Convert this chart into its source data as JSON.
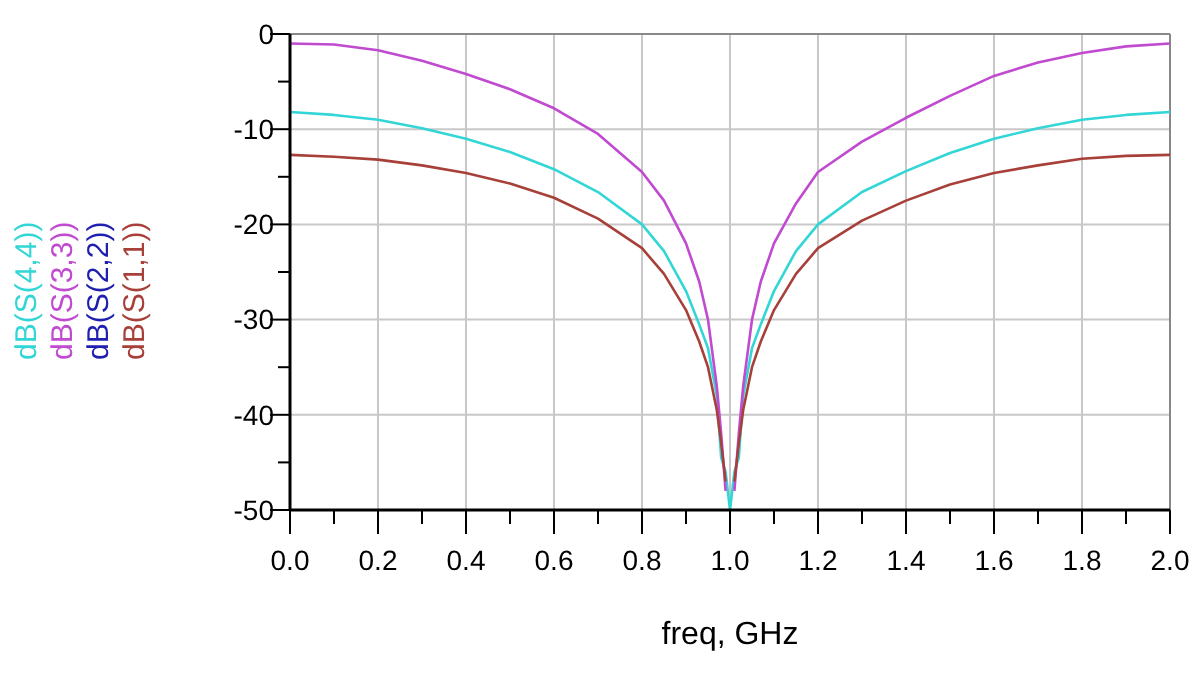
{
  "chart_data": {
    "type": "line",
    "xlabel": "freq, GHz",
    "xlim": [
      0,
      2
    ],
    "ylim": [
      -50,
      0
    ],
    "xticks": [
      {
        "value": 0,
        "label": "0.0"
      },
      {
        "value": 0.1,
        "label": null
      },
      {
        "value": 0.2,
        "label": "0.2"
      },
      {
        "value": 0.3,
        "label": null
      },
      {
        "value": 0.4,
        "label": "0.4"
      },
      {
        "value": 0.5,
        "label": null
      },
      {
        "value": 0.6,
        "label": "0.6"
      },
      {
        "value": 0.7,
        "label": null
      },
      {
        "value": 0.8,
        "label": "0.8"
      },
      {
        "value": 0.9,
        "label": null
      },
      {
        "value": 1,
        "label": "1.0"
      },
      {
        "value": 1.1,
        "label": null
      },
      {
        "value": 1.2,
        "label": "1.2"
      },
      {
        "value": 1.3,
        "label": null
      },
      {
        "value": 1.4,
        "label": "1.4"
      },
      {
        "value": 1.5,
        "label": null
      },
      {
        "value": 1.6,
        "label": "1.6"
      },
      {
        "value": 1.7,
        "label": null
      },
      {
        "value": 1.8,
        "label": "1.8"
      },
      {
        "value": 1.9,
        "label": null
      },
      {
        "value": 2,
        "label": "2.0"
      }
    ],
    "yticks": [
      0,
      {
        "value": -5,
        "label": null
      },
      -10,
      {
        "value": -15,
        "label": null
      },
      -20,
      {
        "value": -25,
        "label": null
      },
      -30,
      {
        "value": -35,
        "label": null
      },
      -40,
      {
        "value": -45,
        "label": null
      },
      -50
    ],
    "grid": true,
    "legend": "left",
    "marker": "none",
    "line_style": "solid",
    "x": [
      0,
      0.1,
      0.2,
      0.3,
      0.4,
      0.5,
      0.6,
      0.7,
      0.8,
      0.85,
      0.9,
      0.93,
      0.95,
      0.97,
      0.98,
      0.99,
      1.0,
      1.01,
      1.02,
      1.03,
      1.05,
      1.07,
      1.1,
      1.15,
      1.2,
      1.3,
      1.4,
      1.5,
      1.6,
      1.7,
      1.8,
      1.9,
      2.0
    ],
    "series": [
      {
        "name": "dB(S(4,4))",
        "color": "#33d6d6",
        "values": [
          -8.2,
          -8.5,
          -9,
          -9.9,
          -11,
          -12.4,
          -14.2,
          -16.6,
          -20,
          -22.8,
          -27,
          -30.5,
          -33,
          -38,
          -44.5,
          -46,
          -50,
          -46,
          -44.5,
          -38,
          -33,
          -30.5,
          -27,
          -22.8,
          -20,
          -16.6,
          -14.4,
          -12.5,
          -11,
          -9.9,
          -9,
          -8.5,
          -8.2
        ]
      },
      {
        "name": "dB(S(3,3))",
        "color": "#c04ad0",
        "values": [
          -1,
          -1.1,
          -1.7,
          -2.8,
          -4.2,
          -5.8,
          -7.8,
          -10.5,
          -14.5,
          -17.5,
          -22,
          -26,
          -30,
          -37,
          -42,
          -48,
          null,
          -48,
          -42,
          -37,
          -30,
          -26,
          -22,
          -17.8,
          -14.5,
          -11.3,
          -8.8,
          -6.5,
          -4.4,
          -3,
          -2,
          -1.3,
          -1
        ]
      },
      {
        "name": "dB(S(2,2))",
        "color": "#2020b0",
        "values": [
          null,
          null,
          null,
          null,
          null,
          null,
          null,
          null,
          null,
          null,
          null,
          null,
          null,
          null,
          null,
          null,
          null,
          null,
          null,
          null,
          null,
          null,
          null,
          null,
          null,
          null,
          null,
          null,
          null,
          null,
          null,
          null,
          null
        ]
      },
      {
        "name": "dB(S(1,1))",
        "color": "#a8403a",
        "values": [
          -12.7,
          -12.9,
          -13.2,
          -13.8,
          -14.6,
          -15.7,
          -17.2,
          -19.4,
          -22.5,
          -25.2,
          -29,
          -32.3,
          -35,
          -39.5,
          -43,
          -47,
          null,
          -47,
          -43,
          -39.5,
          -35,
          -32.3,
          -29,
          -25.2,
          -22.5,
          -19.6,
          -17.5,
          -15.8,
          -14.6,
          -13.8,
          -13.1,
          -12.8,
          -12.7
        ]
      }
    ]
  }
}
